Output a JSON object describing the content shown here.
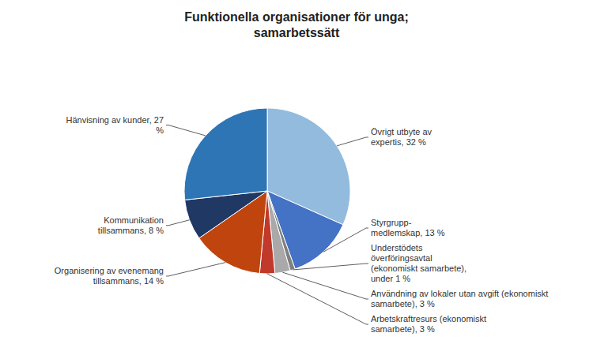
{
  "chart_data": {
    "type": "pie",
    "title": "Funktionella organisationer för unga;\nsamarbetssätt",
    "categories": [
      "Övrigt utbyte av\nexpertis, 32 %",
      "Styrgrupp-\nmedlemskap, 13 %",
      "Understödets\növerföringsavtal\n(ekonomiskt samarbete),\nunder 1 %",
      "Användning av lokaler utan avgift (ekonomiskt\nsamarbete), 3 %",
      "Arbetskraftresurs (ekonomiskt\nsamarbete), 3 %",
      "Organisering av evenemang\ntillsammans, 14 %",
      "Kommunikation\ntillsammans, 8 %",
      "Hänvisning av kunder, 27\n%"
    ],
    "values": [
      32,
      13,
      1,
      3,
      3,
      14,
      8,
      27
    ],
    "colors": [
      "#92BBDD",
      "#4472C4",
      "#808080",
      "#A9A9A9",
      "#C0392B",
      "#C0440D",
      "#1F3864",
      "#2E75B6"
    ]
  }
}
